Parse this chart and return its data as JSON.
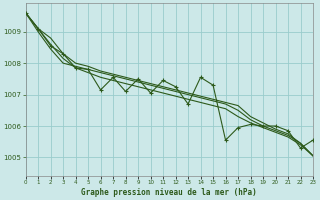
{
  "title": "Graphe pression niveau de la mer (hPa)",
  "background_color": "#cce8e8",
  "grid_color": "#99cccc",
  "line_color": "#2d5a1b",
  "marker_color": "#2d5a1b",
  "y_ticks": [
    1005,
    1006,
    1007,
    1008,
    1009
  ],
  "ylim": [
    1004.4,
    1009.9
  ],
  "xlim": [
    0,
    23
  ],
  "figsize": [
    3.2,
    2.0
  ],
  "dpi": 100,
  "series_zigzag": [
    1009.6,
    1009.1,
    1008.55,
    1008.3,
    1007.85,
    1007.8,
    1007.15,
    1007.55,
    1007.1,
    1007.5,
    1007.05,
    1007.45,
    1007.25,
    1006.7,
    1007.55,
    1007.3,
    1005.55,
    1005.95,
    1006.05,
    1006.0,
    1006.0,
    1005.85,
    1005.3,
    1005.55
  ],
  "series_trend1": [
    1009.6,
    1009.1,
    1008.8,
    1008.3,
    1008.0,
    1007.9,
    1007.75,
    1007.65,
    1007.55,
    1007.45,
    1007.35,
    1007.25,
    1007.15,
    1007.05,
    1006.95,
    1006.85,
    1006.75,
    1006.65,
    1006.3,
    1006.1,
    1005.9,
    1005.75,
    1005.45,
    1005.05
  ],
  "series_trend2": [
    1009.6,
    1009.1,
    1008.6,
    1008.15,
    1007.85,
    1007.7,
    1007.55,
    1007.45,
    1007.35,
    1007.25,
    1007.15,
    1007.05,
    1006.95,
    1006.85,
    1006.75,
    1006.65,
    1006.55,
    1006.3,
    1006.1,
    1005.95,
    1005.8,
    1005.65,
    1005.4,
    1005.05
  ],
  "series_smooth": [
    1009.6,
    1009.0,
    1008.45,
    1008.0,
    1007.9,
    1007.8,
    1007.7,
    1007.6,
    1007.5,
    1007.4,
    1007.3,
    1007.2,
    1007.1,
    1007.0,
    1006.9,
    1006.8,
    1006.7,
    1006.5,
    1006.2,
    1006.0,
    1005.85,
    1005.7,
    1005.45,
    1005.05
  ]
}
